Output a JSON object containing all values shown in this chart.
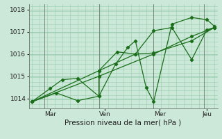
{
  "bg_color": "#cce8d8",
  "grid_color": "#99ccb0",
  "line_color": "#1a6e1a",
  "marker_color": "#1a6e1a",
  "xlabel": "Pression niveau de la mer( hPa )",
  "ylim": [
    1013.55,
    1018.25
  ],
  "yticks": [
    1014,
    1015,
    1016,
    1017,
    1018
  ],
  "xtick_labels": [
    "| Mar",
    "Ven",
    "Mer",
    "| Jeu"
  ],
  "xtick_positions": [
    12,
    48,
    84,
    115
  ],
  "vlines": [
    8,
    44,
    80,
    113
  ],
  "series": [
    {
      "x": [
        0,
        12,
        20,
        30,
        44,
        44,
        56,
        68,
        80,
        92,
        105,
        115,
        120
      ],
      "y": [
        1013.85,
        1014.45,
        1014.85,
        1014.9,
        1014.1,
        1015.25,
        1016.1,
        1016.0,
        1017.05,
        1017.2,
        1015.75,
        1017.1,
        1017.2
      ]
    },
    {
      "x": [
        0,
        16,
        30,
        44,
        55,
        63,
        68,
        75,
        80,
        92,
        105,
        115,
        120
      ],
      "y": [
        1013.85,
        1014.25,
        1013.9,
        1014.1,
        1015.55,
        1016.3,
        1016.6,
        1014.5,
        1013.85,
        1017.35,
        1017.65,
        1017.55,
        1017.25
      ]
    },
    {
      "x": [
        0,
        44,
        68,
        80,
        105,
        120
      ],
      "y": [
        1013.85,
        1015.25,
        1016.0,
        1016.05,
        1016.6,
        1017.2
      ]
    },
    {
      "x": [
        0,
        44,
        80,
        105,
        120
      ],
      "y": [
        1013.85,
        1015.0,
        1016.0,
        1016.8,
        1017.2
      ]
    }
  ]
}
